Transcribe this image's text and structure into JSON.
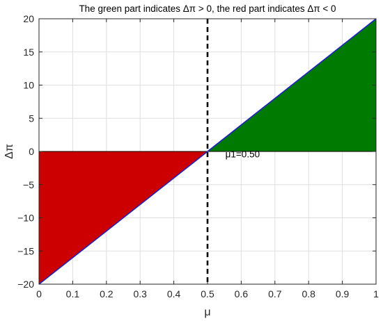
{
  "chart_data": {
    "type": "area",
    "title": "The green part indicates Δπ > 0,  the red part indicates Δπ < 0",
    "xlabel": "μ",
    "ylabel": "Δπ",
    "xlim": [
      0,
      1
    ],
    "ylim": [
      -20,
      20
    ],
    "x_ticks": [
      0,
      0.1,
      0.2,
      0.3,
      0.4,
      0.5,
      0.6,
      0.7,
      0.8,
      0.9,
      1
    ],
    "x_tick_labels": [
      "0",
      "0.1",
      "0.2",
      "0.3",
      "0.4",
      "0.5",
      "0.6",
      "0.7",
      "0.8",
      "0.9",
      "1"
    ],
    "y_ticks": [
      -20,
      -15,
      -10,
      -5,
      0,
      5,
      10,
      15,
      20
    ],
    "y_tick_labels": [
      "−20",
      "−15",
      "−10",
      "−5",
      "0",
      "5",
      "10",
      "15",
      "20"
    ],
    "grid": true,
    "line": {
      "x": [
        0,
        1
      ],
      "y": [
        -20,
        20
      ],
      "color": "#1f1fcc"
    },
    "regions": [
      {
        "polygon": [
          [
            0,
            -20
          ],
          [
            0.5,
            0
          ],
          [
            0,
            0
          ]
        ],
        "color": "#cc0000"
      },
      {
        "polygon": [
          [
            0.5,
            0
          ],
          [
            1,
            20
          ],
          [
            1,
            0
          ]
        ],
        "color": "#007a00"
      }
    ],
    "threshold": {
      "x": 0.5,
      "style": "dashed",
      "color": "#000000"
    },
    "annotations": [
      {
        "text": "μ1=0.50",
        "x": 0.553,
        "y": -0.35
      }
    ]
  }
}
